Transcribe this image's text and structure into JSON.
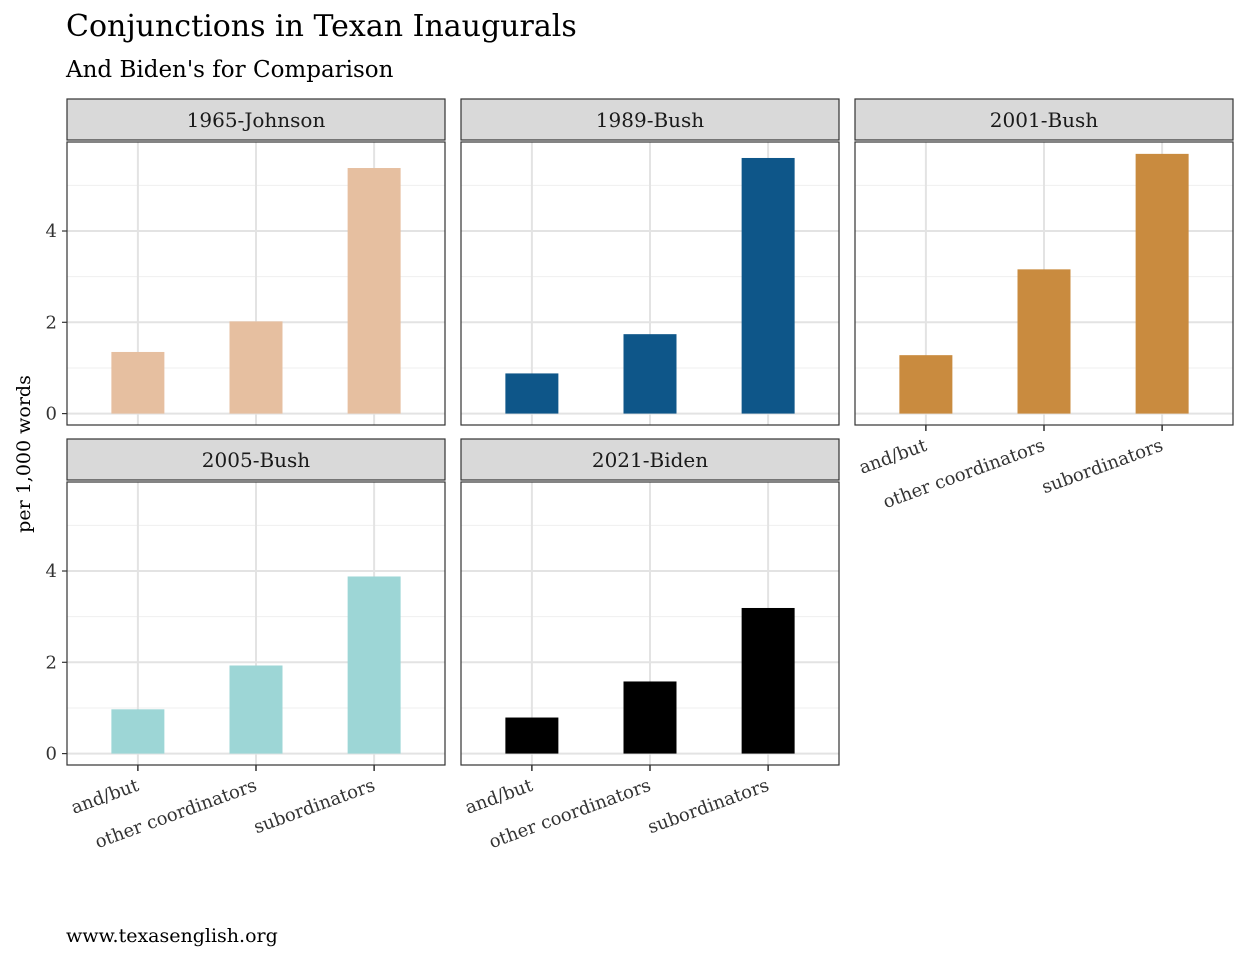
{
  "chart_data": {
    "type": "bar",
    "title": "Conjunctions in Texan Inaugurals",
    "subtitle": "And Biden's for Comparison",
    "ylabel": "per 1,000 words",
    "xlabel": "",
    "caption": "www.texasenglish.org",
    "categories": [
      "and/but",
      "other coordinators",
      "subordinators"
    ],
    "ylim": [
      -0.25,
      5.95
    ],
    "yticks": [
      0,
      2,
      4
    ],
    "grid": true,
    "facets": [
      {
        "name": "1965-Johnson",
        "color": "#E6BFA0",
        "values": [
          1.35,
          2.02,
          5.38
        ]
      },
      {
        "name": "1989-Bush",
        "color": "#0E5689",
        "values": [
          0.88,
          1.74,
          5.6
        ]
      },
      {
        "name": "2001-Bush",
        "color": "#C98B3F",
        "values": [
          1.28,
          3.16,
          5.69
        ]
      },
      {
        "name": "2005-Bush",
        "color": "#9DD6D6",
        "values": [
          0.97,
          1.93,
          3.88
        ]
      },
      {
        "name": "2021-Biden",
        "color": "#000000",
        "values": [
          0.79,
          1.58,
          3.19
        ]
      }
    ]
  }
}
